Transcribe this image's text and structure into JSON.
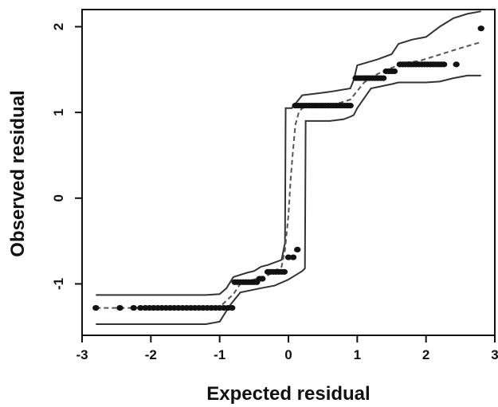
{
  "chart_data": {
    "type": "scatter",
    "title": "",
    "xlabel": "Expected residual",
    "ylabel": "Observed residual",
    "xlim": [
      -3.0,
      3.0
    ],
    "ylim": [
      -1.6,
      2.2
    ],
    "x_ticks": [
      -3,
      -2,
      -1,
      0,
      1,
      2,
      3
    ],
    "y_ticks": [
      -1,
      0,
      1,
      2
    ],
    "grid": false,
    "legend": "none",
    "colors": {
      "points": "#111111",
      "bands": "#333333",
      "median": "#555555"
    },
    "series": [
      {
        "type": "points",
        "x": [
          -2.8,
          -2.45,
          -2.25,
          -2.15,
          -2.08,
          -2.02,
          -1.96,
          -1.9,
          -1.84,
          -1.78,
          -1.72,
          -1.66,
          -1.6,
          -1.54,
          -1.48,
          -1.42,
          -1.36,
          -1.3,
          -1.24,
          -1.18,
          -1.12,
          -1.06,
          -1.0,
          -0.94,
          -0.88,
          -0.82,
          -0.78,
          -0.74,
          -0.7,
          -0.66,
          -0.62,
          -0.58,
          -0.54,
          -0.5,
          -0.46,
          -0.42,
          -0.38,
          -0.3,
          -0.26,
          -0.22,
          -0.18,
          -0.14,
          -0.1,
          -0.06,
          0.0,
          0.07,
          0.13,
          0.1,
          0.14,
          0.18,
          0.22,
          0.26,
          0.3,
          0.34,
          0.38,
          0.42,
          0.46,
          0.5,
          0.54,
          0.58,
          0.62,
          0.66,
          0.7,
          0.74,
          0.78,
          0.82,
          0.86,
          0.9,
          0.98,
          1.02,
          1.06,
          1.1,
          1.14,
          1.18,
          1.22,
          1.26,
          1.3,
          1.34,
          1.38,
          1.42,
          1.46,
          1.5,
          1.54,
          1.62,
          1.66,
          1.7,
          1.74,
          1.78,
          1.82,
          1.86,
          1.9,
          1.94,
          1.98,
          2.02,
          2.06,
          2.1,
          2.14,
          2.18,
          2.22,
          2.26,
          2.44,
          2.8
        ],
        "y": [
          -1.28,
          -1.28,
          -1.28,
          -1.28,
          -1.28,
          -1.28,
          -1.28,
          -1.28,
          -1.28,
          -1.28,
          -1.28,
          -1.28,
          -1.28,
          -1.28,
          -1.28,
          -1.28,
          -1.28,
          -1.28,
          -1.28,
          -1.28,
          -1.28,
          -1.28,
          -1.28,
          -1.28,
          -1.28,
          -1.28,
          -0.98,
          -0.98,
          -0.98,
          -0.98,
          -0.98,
          -0.98,
          -0.98,
          -0.98,
          -0.98,
          -0.94,
          -0.94,
          -0.86,
          -0.86,
          -0.86,
          -0.86,
          -0.86,
          -0.86,
          -0.86,
          -0.69,
          -0.69,
          -0.6,
          1.08,
          1.08,
          1.08,
          1.08,
          1.08,
          1.08,
          1.08,
          1.08,
          1.08,
          1.08,
          1.08,
          1.08,
          1.08,
          1.08,
          1.08,
          1.08,
          1.08,
          1.08,
          1.08,
          1.08,
          1.08,
          1.4,
          1.4,
          1.4,
          1.4,
          1.4,
          1.4,
          1.4,
          1.4,
          1.4,
          1.4,
          1.4,
          1.48,
          1.48,
          1.48,
          1.48,
          1.56,
          1.56,
          1.56,
          1.56,
          1.56,
          1.56,
          1.56,
          1.56,
          1.56,
          1.56,
          1.56,
          1.56,
          1.56,
          1.56,
          1.56,
          1.56,
          1.56,
          1.56,
          1.98
        ]
      },
      {
        "type": "upper-envelope",
        "x": [
          -2.8,
          -1.2,
          -1.0,
          -0.9,
          -0.8,
          -0.6,
          -0.5,
          -0.4,
          -0.3,
          -0.1,
          -0.05,
          -0.04,
          0.05,
          0.1,
          0.15,
          0.2,
          0.4,
          0.6,
          0.9,
          0.95,
          1.0,
          1.3,
          1.5,
          1.6,
          1.8,
          2.0,
          2.2,
          2.4,
          2.6,
          2.8
        ],
        "y": [
          -1.13,
          -1.13,
          -1.12,
          -1.05,
          -0.92,
          -0.87,
          -0.85,
          -0.8,
          -0.78,
          -0.72,
          -0.52,
          1.05,
          1.05,
          1.1,
          1.15,
          1.2,
          1.22,
          1.24,
          1.28,
          1.38,
          1.55,
          1.62,
          1.68,
          1.8,
          1.85,
          1.88,
          2.0,
          2.1,
          2.15,
          2.18
        ]
      },
      {
        "type": "lower-envelope",
        "x": [
          -2.8,
          -1.2,
          -1.0,
          -0.85,
          -0.7,
          -0.4,
          -0.2,
          0.0,
          0.1,
          0.2,
          0.24,
          0.25,
          0.6,
          0.8,
          0.9,
          0.95,
          1.0,
          1.2,
          1.5,
          1.6,
          2.0,
          2.2,
          2.4,
          2.6,
          2.8
        ],
        "y": [
          -1.47,
          -1.47,
          -1.44,
          -1.25,
          -1.1,
          -1.05,
          -1.02,
          -0.95,
          -0.9,
          -0.85,
          -0.82,
          0.9,
          0.9,
          0.92,
          0.95,
          0.97,
          1.05,
          1.28,
          1.33,
          1.35,
          1.35,
          1.36,
          1.4,
          1.43,
          1.43
        ]
      },
      {
        "type": "median",
        "x": [
          -2.8,
          -2.4,
          -2.0,
          -1.5,
          -1.0,
          -0.8,
          -0.7,
          -0.5,
          -0.3,
          -0.2,
          -0.1,
          -0.05,
          0.0,
          0.03,
          0.06,
          0.1,
          0.15,
          0.2,
          0.3,
          0.5,
          0.7,
          0.9,
          1.0,
          1.1,
          1.3,
          1.5,
          1.7,
          1.9,
          2.1,
          2.3,
          2.5,
          2.8
        ],
        "y": [
          -1.28,
          -1.28,
          -1.28,
          -1.28,
          -1.27,
          -1.12,
          -1.0,
          -0.95,
          -0.9,
          -0.85,
          -0.8,
          -0.6,
          -0.2,
          0.2,
          0.5,
          0.85,
          1.0,
          1.05,
          1.07,
          1.08,
          1.1,
          1.15,
          1.25,
          1.35,
          1.45,
          1.52,
          1.58,
          1.6,
          1.65,
          1.7,
          1.75,
          1.82
        ]
      }
    ]
  }
}
